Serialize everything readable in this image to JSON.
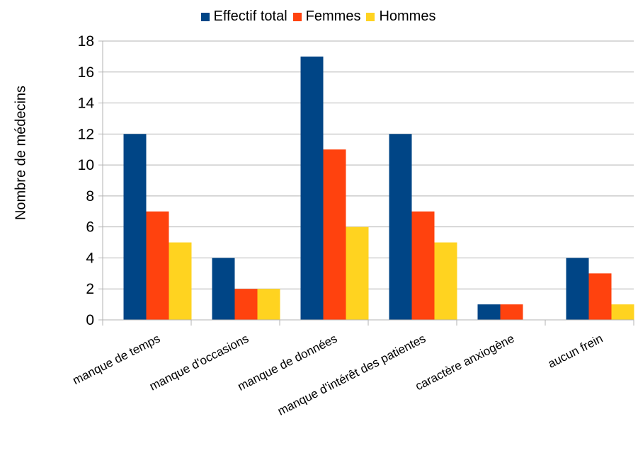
{
  "chart_data": {
    "type": "bar",
    "title": "",
    "xlabel": "",
    "ylabel": "Nombre de médecins",
    "ylim": [
      0,
      18
    ],
    "yticks": [
      0,
      2,
      4,
      6,
      8,
      10,
      12,
      14,
      16,
      18
    ],
    "grid": true,
    "legend_position": "top",
    "categories": [
      "manque de temps",
      "manque d'occasions",
      "manque de données",
      "manque d'intérêt des patientes",
      "caractère anxiogène",
      "aucun frein"
    ],
    "series": [
      {
        "name": "Effectif total",
        "color": "#004586",
        "values": [
          12,
          4,
          17,
          12,
          1,
          4
        ]
      },
      {
        "name": "Femmes",
        "color": "#ff420e",
        "values": [
          7,
          2,
          11,
          7,
          1,
          3
        ]
      },
      {
        "name": "Hommes",
        "color": "#ffd320",
        "values": [
          5,
          2,
          6,
          5,
          0,
          1
        ]
      }
    ]
  }
}
